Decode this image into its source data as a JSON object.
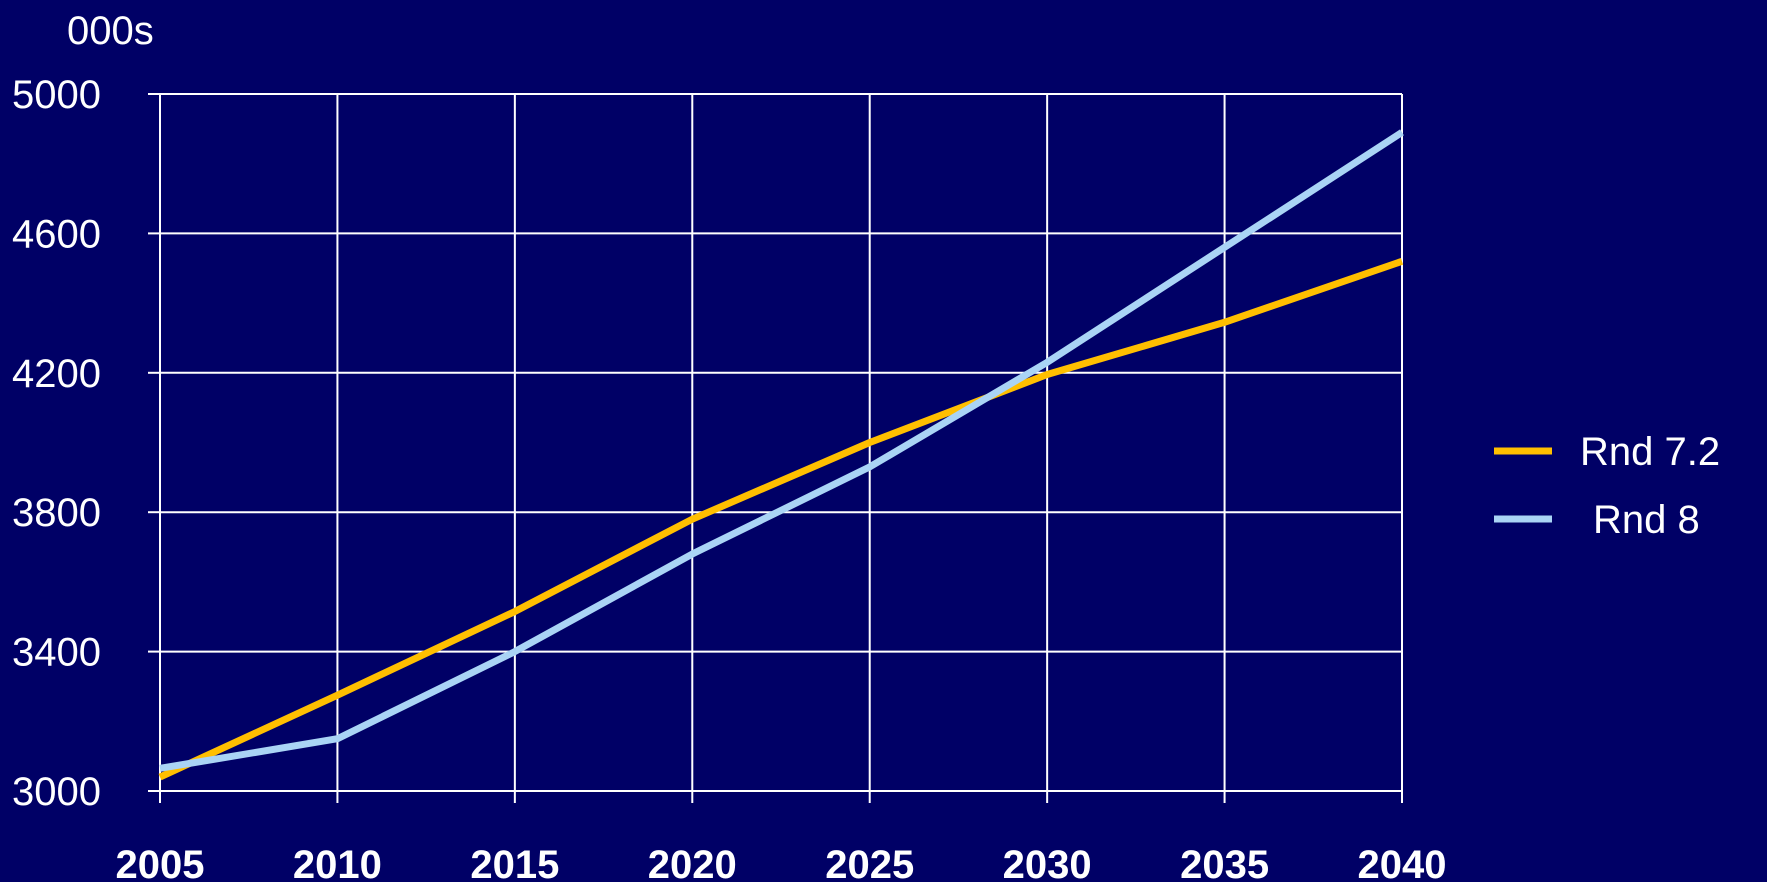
{
  "chart_data": {
    "type": "line",
    "unit_label": "000s",
    "x": [
      2005,
      2010,
      2015,
      2020,
      2025,
      2030,
      2035,
      2040
    ],
    "ylim": [
      3000,
      5000
    ],
    "yticks": [
      3000,
      3400,
      3800,
      4200,
      4600,
      5000
    ],
    "grid": true,
    "legend_position": "right",
    "series": [
      {
        "name": "Rnd 7.2",
        "color": "#ffbf00",
        "values": [
          3040,
          3275,
          3515,
          3780,
          4000,
          4195,
          4345,
          4520
        ]
      },
      {
        "name": "Rnd 8",
        "color": "#aad4f5",
        "values": [
          3065,
          3150,
          3400,
          3680,
          3930,
          4230,
          4560,
          4890
        ]
      }
    ]
  },
  "colors": {
    "background": "#000066",
    "grid": "#ffffff",
    "text": "#ffffff"
  }
}
